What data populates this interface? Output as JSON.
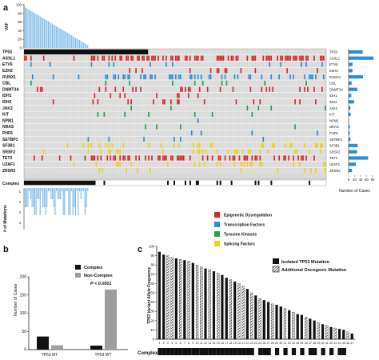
{
  "panels": {
    "a": "a",
    "b": "b",
    "c": "c"
  },
  "panel_a": {
    "vaf_label": "VAF",
    "vaf_ticks": [
      "100",
      "80",
      "60",
      "40",
      "20",
      "0"
    ],
    "genes": [
      "TP53",
      "ASXL1",
      "ETV6",
      "EZH2",
      "RUNX1",
      "CBL",
      "DNMT3A",
      "IDH1",
      "IDH2",
      "JAK2",
      "KIT",
      "NPM1",
      "NRAS",
      "PHF6",
      "SETBP1",
      "SF3B1",
      "SRSF2",
      "TET2",
      "U2AF1",
      "ZRSR2"
    ],
    "complex_label": "Complex",
    "mutations_label": "# of Mutations",
    "mutation_ticks": [
      "1",
      "2",
      "3",
      "4"
    ],
    "cases_label": "Number of Cases",
    "cases_ticks": [
      "0",
      "20",
      "40",
      "60",
      "80"
    ],
    "legend": [
      {
        "label": "Epigenetic Dysregulation",
        "color": "#d62828"
      },
      {
        "label": "Transcription Factors",
        "color": "#2b8fd4"
      },
      {
        "label": "Tyrosine Kinases",
        "color": "#2e9e4a"
      },
      {
        "label": "Splicing Factors",
        "color": "#ebd21e"
      }
    ]
  },
  "panel_b": {
    "ylabel": "Number of Cases",
    "yticks": [
      "0",
      "50",
      "100",
      "150",
      "200"
    ],
    "legend_complex": "Complex",
    "legend_noncomplex": "Non-Complex",
    "pvalue": "P < 0.0001",
    "categories": [
      "TP53 MT",
      "TP53 WT"
    ]
  },
  "panel_c": {
    "ylabel": "TP53 Variant Allele Frequency",
    "yticks": [
      "0",
      "10",
      "20",
      "30",
      "40",
      "50",
      "60",
      "70",
      "80",
      "90",
      "100"
    ],
    "legend_isolated": "Isolated TP53 Mutation",
    "legend_additional": "Additional Oncogenic Mutation",
    "complex_label": "Complex",
    "xticks": [
      "1",
      "2",
      "3",
      "4",
      "5",
      "6",
      "7",
      "8",
      "9",
      "10",
      "11",
      "12",
      "13",
      "14",
      "15",
      "16",
      "17",
      "18",
      "19",
      "20",
      "21",
      "22",
      "23",
      "24",
      "25",
      "26",
      "27",
      "28",
      "29",
      "30",
      "31",
      "32",
      "33",
      "34",
      "35",
      "36",
      "37",
      "38",
      "39",
      "40",
      "41",
      "42",
      "43",
      "44",
      "45",
      "46",
      "47"
    ]
  },
  "chart_data": [
    {
      "type": "bar",
      "panel": "b",
      "categories": [
        "TP53 MT",
        "TP53 WT"
      ],
      "series": [
        {
          "name": "Complex",
          "values": [
            36,
            11
          ]
        },
        {
          "name": "Non-Complex",
          "values": [
            12,
            165
          ]
        }
      ],
      "ylabel": "Number of Cases",
      "ylim": [
        0,
        200
      ]
    },
    {
      "type": "bar",
      "panel": "c",
      "categories": [
        "1",
        "2",
        "3",
        "4",
        "5",
        "6",
        "7",
        "8",
        "9",
        "10",
        "11",
        "12",
        "13",
        "14",
        "15",
        "16",
        "17",
        "18",
        "19",
        "20",
        "21",
        "22",
        "23",
        "24",
        "25",
        "26",
        "27",
        "28",
        "29",
        "30",
        "31",
        "32",
        "33",
        "34",
        "35",
        "36",
        "37",
        "38",
        "39",
        "40",
        "41",
        "42",
        "43",
        "44",
        "45",
        "46",
        "47"
      ],
      "values": [
        94,
        91,
        90,
        88,
        87,
        86,
        85,
        84,
        82,
        80,
        78,
        76,
        75,
        73,
        71,
        69,
        66,
        64,
        62,
        60,
        57,
        54,
        50,
        47,
        44,
        42,
        40,
        38,
        37,
        35,
        33,
        31,
        29,
        27,
        26,
        24,
        22,
        20,
        18,
        16,
        15,
        13,
        12,
        11,
        10,
        8,
        6
      ],
      "additional": [
        0,
        0,
        1,
        1,
        0,
        1,
        0,
        1,
        0,
        1,
        1,
        0,
        1,
        0,
        1,
        0,
        0,
        1,
        0,
        1,
        1,
        0,
        1,
        0,
        1,
        0,
        0,
        1,
        0,
        0,
        1,
        0,
        1,
        0,
        0,
        1,
        0,
        0,
        1,
        0,
        1,
        0,
        1,
        0,
        0,
        1,
        0
      ],
      "complex": [
        1,
        1,
        1,
        1,
        1,
        1,
        1,
        1,
        1,
        1,
        1,
        1,
        1,
        1,
        1,
        1,
        1,
        1,
        1,
        1,
        1,
        1,
        1,
        0,
        1,
        1,
        1,
        0,
        1,
        0,
        1,
        0,
        1,
        0,
        1,
        0,
        1,
        1,
        0,
        1,
        0,
        1,
        0,
        1,
        1,
        0,
        0
      ],
      "ylabel": "TP53 Variant Allele Frequency",
      "ylim": [
        0,
        100
      ]
    }
  ]
}
